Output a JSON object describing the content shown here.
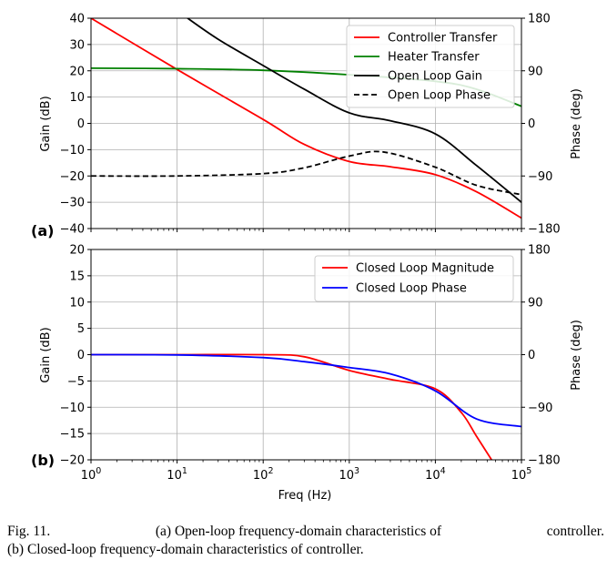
{
  "chart_data": [
    {
      "panel": "(a)",
      "type": "line",
      "xscale": "log",
      "xlim": [
        1,
        100000
      ],
      "ylim_left": [
        -40,
        40
      ],
      "ylim_right": [
        -180,
        180
      ],
      "ylabel": "Gain (dB)",
      "ylabel_right": "Phase (deg)",
      "yticks_left": [
        "40",
        "30",
        "20",
        "10",
        "0",
        "−10",
        "−20",
        "−30",
        "−40"
      ],
      "yticks_right": [
        "180",
        "90",
        "0",
        "−90",
        "−180"
      ],
      "grid": true,
      "legend_position": "top-right",
      "series": [
        {
          "name": "Controller Transfer",
          "color": "#ff0000",
          "style": "solid",
          "axis": "left",
          "x": [
            1,
            10,
            100,
            300,
            1000,
            3000,
            10000,
            30000,
            100000
          ],
          "y": [
            40,
            20.5,
            1.5,
            -8,
            -14.5,
            -16.5,
            -19.5,
            -26,
            -36
          ]
        },
        {
          "name": "Heater Transfer",
          "color": "#008000",
          "style": "solid",
          "axis": "left",
          "x": [
            1,
            10,
            100,
            1000,
            10000,
            30000,
            100000
          ],
          "y": [
            21,
            20.8,
            20.2,
            18.5,
            16,
            13,
            6.5
          ]
        },
        {
          "name": "Open Loop Gain",
          "color": "#000000",
          "style": "solid",
          "axis": "left",
          "x": [
            12,
            30,
            100,
            300,
            1000,
            3000,
            10000,
            30000,
            100000
          ],
          "y": [
            41,
            32,
            22,
            13,
            4,
            1,
            -4,
            -16,
            -30
          ]
        },
        {
          "name": "Open Loop Phase",
          "color": "#000000",
          "style": "dashed",
          "axis": "right",
          "x": [
            1,
            10,
            100,
            300,
            1000,
            2500,
            10000,
            30000,
            100000
          ],
          "y": [
            -90,
            -90,
            -86,
            -76,
            -56,
            -49,
            -75,
            -106,
            -122
          ]
        }
      ]
    },
    {
      "panel": "(b)",
      "type": "line",
      "xscale": "log",
      "xlim": [
        1,
        100000
      ],
      "xlabel": "Freq (Hz)",
      "xticks": [
        "0",
        "1",
        "2",
        "3",
        "4",
        "5"
      ],
      "ylim_left": [
        -20,
        20
      ],
      "ylim_right": [
        -180,
        180
      ],
      "ylabel": "Gain (dB)",
      "ylabel_right": "Phase (deg)",
      "yticks_left": [
        "20",
        "15",
        "10",
        "5",
        "0",
        "−5",
        "−10",
        "−15",
        "−20"
      ],
      "yticks_right": [
        "180",
        "90",
        "0",
        "−90",
        "−180"
      ],
      "grid": true,
      "legend_position": "top-right",
      "series": [
        {
          "name": "Closed Loop Magnitude",
          "color": "#ff0000",
          "style": "solid",
          "axis": "left",
          "x": [
            1,
            10,
            100,
            300,
            1000,
            3000,
            10000,
            20000,
            30000,
            45000
          ],
          "y": [
            0,
            0,
            0,
            -0.4,
            -3,
            -4.7,
            -6.5,
            -11,
            -15.5,
            -20
          ]
        },
        {
          "name": "Closed Loop Phase",
          "color": "#0000ff",
          "style": "solid",
          "axis": "right",
          "x": [
            1,
            10,
            100,
            300,
            1000,
            3000,
            10000,
            30000,
            100000
          ],
          "y": [
            0,
            -0.5,
            -5,
            -12,
            -22,
            -33,
            -62,
            -110,
            -123
          ]
        }
      ]
    }
  ],
  "caption": {
    "line1_left": "Fig. 11.",
    "line1_mid": "(a) Open-loop frequency-domain characteristics of",
    "line1_right": "controller.",
    "line2": "(b) Closed-loop frequency-domain characteristics of controller."
  }
}
